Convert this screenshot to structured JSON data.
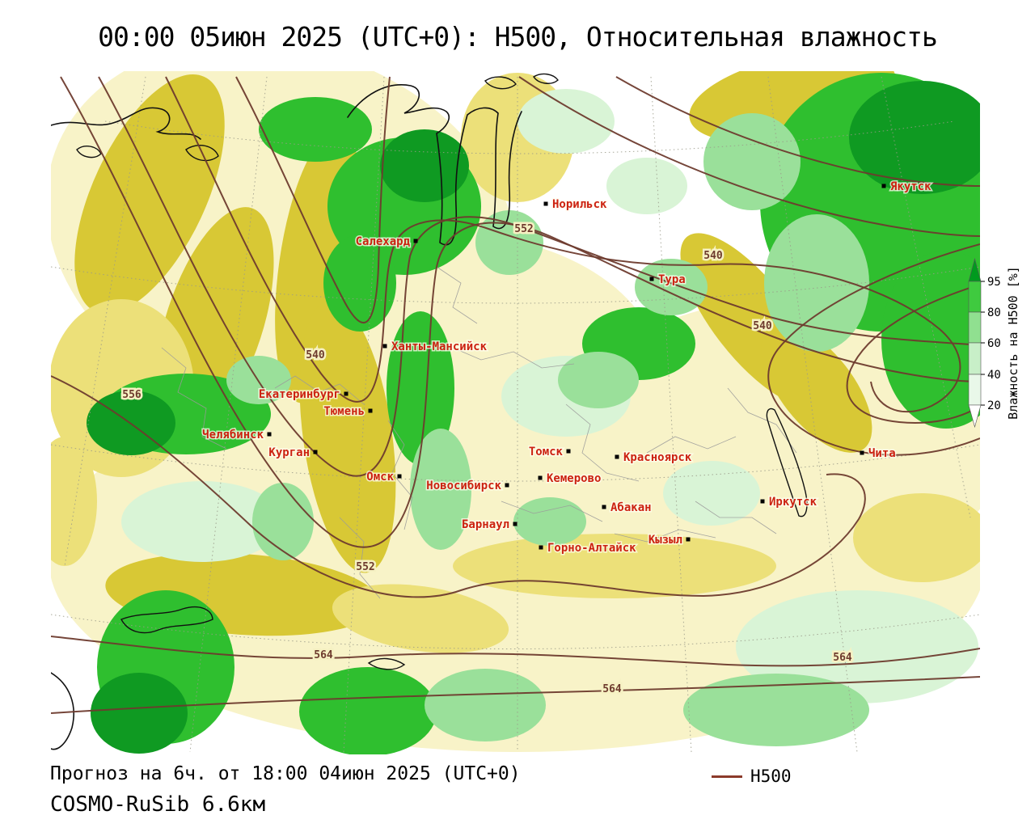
{
  "title": "00:00 05июн 2025 (UTC+0): H500, Относительная влажность",
  "map": {
    "cities": [
      "Якутск",
      "Норильск",
      "Салехард",
      "Тура",
      "Ханты-Мансийск",
      "Екатеринбург",
      "Тюмень",
      "Челябинск",
      "Курган",
      "Омск",
      "Томск",
      "Красноярск",
      "Кемерово",
      "Новосибирск",
      "Абакан",
      "Иркутск",
      "Барнаул",
      "Горно-Алтайск",
      "Кызыл",
      "Чита"
    ],
    "contour_labels": [
      "552",
      "540",
      "556",
      "552",
      "540",
      "540",
      "564",
      "564",
      "564"
    ]
  },
  "colorbar": {
    "label": "Влажность на H500 [%]",
    "ticks": [
      "95",
      "80",
      "60",
      "40",
      "20"
    ]
  },
  "legend": {
    "h500_label": "H500"
  },
  "footer": {
    "forecast_line": "Прогноз на 6ч. от 18:00 04июн 2025 (UTC+0)",
    "model_line": "COSMO-RuSib 6.6км"
  },
  "colors": {
    "strong_green": "#2fbf2f",
    "dark_green": "#0f9a22",
    "light_green": "#9ae09a",
    "pale_green": "#d9f4d6",
    "pale_yellow": "#f8f3c8",
    "yellow": "#ece079",
    "mustard": "#d8c835",
    "contour": "#6e3b2e",
    "city_label": "#cc2211",
    "legend_line": "#8b3a2a"
  }
}
